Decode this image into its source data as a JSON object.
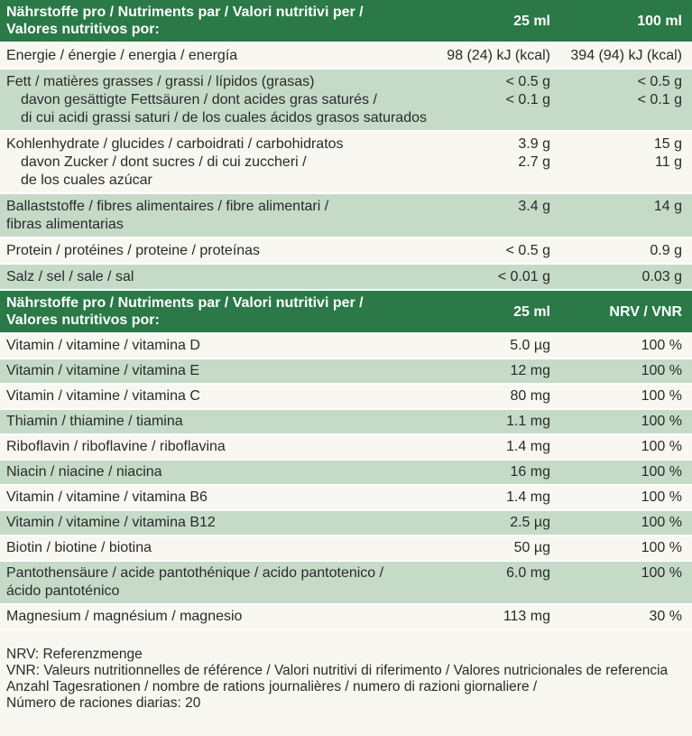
{
  "table1": {
    "header": {
      "label_1": "Nährstoffe pro / Nutriments par / Valori nutritivi per /",
      "label_2": "Valores nutritivos por:",
      "col2": "25 ml",
      "col3": "100 ml"
    },
    "rows": [
      {
        "label": [
          "Energie / énergie / energia / energía"
        ],
        "v25": [
          "98 (24) kJ (kcal)"
        ],
        "v100": [
          "394 (94) kJ (kcal)"
        ]
      },
      {
        "label": [
          "Fett / matières grasses / grassi / lípidos (grasas)",
          "davon gesättigte Fettsäuren / dont acides gras saturés /",
          "di cui acidi grassi saturi / de los cuales ácidos grasos saturados"
        ],
        "v25": [
          "< 0.5 g",
          "< 0.1 g"
        ],
        "v100": [
          "< 0.5 g",
          "< 0.1 g"
        ]
      },
      {
        "label": [
          "Kohlenhydrate / glucides / carboidrati / carbohidratos",
          "davon Zucker / dont sucres / di cui zuccheri /",
          "de los cuales azúcar"
        ],
        "v25": [
          "3.9 g",
          "2.7 g"
        ],
        "v100": [
          "15 g",
          "11 g"
        ]
      },
      {
        "label": [
          "Ballaststoffe / fibres alimentaires / fibre alimentari /",
          "fibras alimentarias"
        ],
        "v25": [
          "3.4 g"
        ],
        "v100": [
          "14 g"
        ]
      },
      {
        "label": [
          "Protein / protéines / proteine / proteínas"
        ],
        "v25": [
          "< 0.5 g"
        ],
        "v100": [
          "0.9 g"
        ]
      },
      {
        "label": [
          "Salz / sel / sale / sal"
        ],
        "v25": [
          "< 0.01 g"
        ],
        "v100": [
          "0.03 g"
        ]
      }
    ]
  },
  "table2": {
    "header": {
      "label_1": "Nährstoffe pro / Nutriments par / Valori nutritivi per /",
      "label_2": "Valores nutritivos por:",
      "col2": "25 ml",
      "col3": "NRV / VNR"
    },
    "rows": [
      {
        "label": [
          "Vitamin / vitamine / vitamina D"
        ],
        "v25": [
          "5.0 µg"
        ],
        "nrv": [
          "100 %"
        ]
      },
      {
        "label": [
          "Vitamin / vitamine / vitamina E"
        ],
        "v25": [
          "12 mg"
        ],
        "nrv": [
          "100 %"
        ]
      },
      {
        "label": [
          "Vitamin / vitamine / vitamina C"
        ],
        "v25": [
          "80 mg"
        ],
        "nrv": [
          "100 %"
        ]
      },
      {
        "label": [
          "Thiamin / thiamine / tiamina"
        ],
        "v25": [
          "1.1 mg"
        ],
        "nrv": [
          "100 %"
        ]
      },
      {
        "label": [
          "Riboflavin / riboflavine / riboflavina"
        ],
        "v25": [
          "1.4 mg"
        ],
        "nrv": [
          "100 %"
        ]
      },
      {
        "label": [
          "Niacin / niacine / niacina"
        ],
        "v25": [
          "16 mg"
        ],
        "nrv": [
          "100 %"
        ]
      },
      {
        "label": [
          "Vitamin / vitamine / vitamina B6"
        ],
        "v25": [
          "1.4 mg"
        ],
        "nrv": [
          "100 %"
        ]
      },
      {
        "label": [
          "Vitamin / vitamine / vitamina B12"
        ],
        "v25": [
          "2.5 µg"
        ],
        "nrv": [
          "100 %"
        ]
      },
      {
        "label": [
          "Biotin / biotine / biotina"
        ],
        "v25": [
          "50 µg"
        ],
        "nrv": [
          "100 %"
        ]
      },
      {
        "label": [
          "Pantothensäure / acide pantothénique / acido pantotenico /",
          "ácido pantoténico"
        ],
        "v25": [
          "6.0 mg"
        ],
        "nrv": [
          "100 %"
        ]
      },
      {
        "label": [
          "Magnesium / magnésium / magnesio"
        ],
        "v25": [
          "113 mg"
        ],
        "nrv": [
          "30 %"
        ]
      }
    ]
  },
  "notes": [
    "NRV: Referenzmenge",
    "VNR: Valeurs nutritionnelles de référence / Valori nutritivi di riferimento / Valores nutricionales de referencia",
    "Anzahl Tagesrationen / nombre de rations journalières / numero di razioni giornaliere /",
    "Número de raciones diarias: 20"
  ],
  "colors": {
    "header_green": "#2a7946",
    "row_green": "#c5dbc8",
    "background": "#f8f7f1"
  }
}
